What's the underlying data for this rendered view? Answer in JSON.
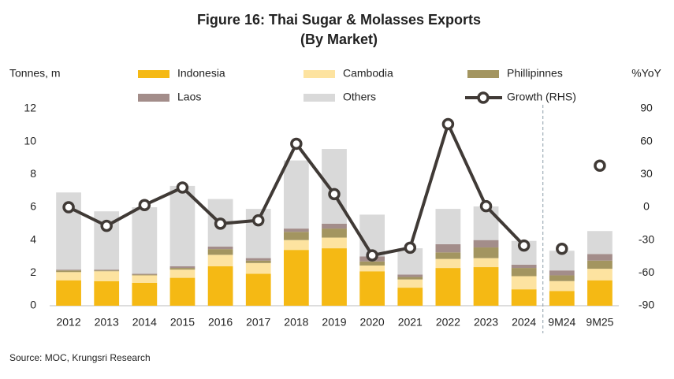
{
  "chart_data": {
    "type": "bar",
    "title": "Figure 16: Thai Sugar & Molasses Exports",
    "subtitle": "(By Market)",
    "y_label": "Tonnes, m",
    "y2_label": "%YoY",
    "source": "Source: MOC, Krungsri Research",
    "stacked": true,
    "divider_after": "2024",
    "categories": [
      "2012",
      "2013",
      "2014",
      "2015",
      "2016",
      "2017",
      "2018",
      "2019",
      "2020",
      "2021",
      "2022",
      "2023",
      "2024",
      "9M24",
      "9M25"
    ],
    "series": [
      {
        "name": "Indonesia",
        "color": "#f5b914",
        "values": [
          1.55,
          1.5,
          1.4,
          1.7,
          2.4,
          1.95,
          3.4,
          3.5,
          2.1,
          1.1,
          2.3,
          2.35,
          1.0,
          0.9,
          1.55
        ]
      },
      {
        "name": "Cambodia",
        "color": "#fde3a0",
        "values": [
          0.5,
          0.6,
          0.45,
          0.5,
          0.7,
          0.65,
          0.6,
          0.65,
          0.35,
          0.5,
          0.55,
          0.55,
          0.8,
          0.6,
          0.7
        ]
      },
      {
        "name": "Phillipinnes",
        "color": "#a39560",
        "values": [
          0.1,
          0.05,
          0.05,
          0.1,
          0.35,
          0.15,
          0.5,
          0.55,
          0.25,
          0.15,
          0.4,
          0.65,
          0.5,
          0.35,
          0.5
        ]
      },
      {
        "name": "Laos",
        "color": "#a38d8a",
        "values": [
          0.05,
          0.05,
          0.05,
          0.1,
          0.15,
          0.15,
          0.2,
          0.3,
          0.3,
          0.15,
          0.5,
          0.45,
          0.2,
          0.3,
          0.4
        ]
      },
      {
        "name": "Others",
        "color": "#d9d9d9",
        "values": [
          4.7,
          3.55,
          4.05,
          4.9,
          2.9,
          3.0,
          4.15,
          4.55,
          2.55,
          1.6,
          2.15,
          2.05,
          1.45,
          1.2,
          1.4
        ]
      },
      {
        "name": "Growth (RHS)",
        "color": "#403a36",
        "type": "line",
        "axis": "y2",
        "values": [
          0,
          -17,
          2,
          18,
          -15,
          -12,
          58,
          12,
          -44,
          -37,
          76,
          1,
          -35,
          -38,
          38
        ]
      }
    ],
    "ylim": [
      0,
      12
    ],
    "yticks": [
      0,
      2,
      4,
      6,
      8,
      10,
      12
    ],
    "y2lim": [
      -90,
      90
    ],
    "y2ticks": [
      -90,
      -60,
      -30,
      0,
      30,
      60,
      90
    ]
  }
}
